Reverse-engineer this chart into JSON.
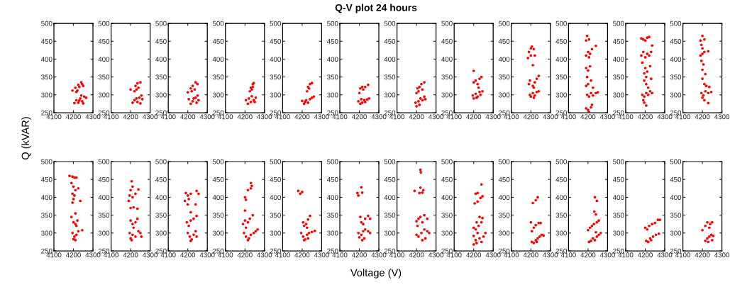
{
  "chart_data": [
    {
      "type": "scatter",
      "ylabel": "Q (kVAR)",
      "color": "#ff0000",
      "marker": "circle",
      "xlim": [
        4100,
        4300
      ],
      "xticks": [
        4100,
        4200,
        4300
      ],
      "ylim": [
        250,
        500
      ],
      "yticks": [
        250,
        300,
        350,
        400,
        450,
        500
      ],
      "x": [
        4195,
        4210,
        4220,
        4225,
        4240,
        4250,
        4245,
        4230,
        4215,
        4205,
        4215,
        4225,
        4235,
        4245,
        4255,
        4265,
        4250,
        4240,
        4230
      ],
      "values": [
        312,
        320,
        312,
        328,
        335,
        325,
        330,
        322,
        308,
        277,
        285,
        278,
        290,
        282,
        295,
        292,
        276,
        298,
        284
      ]
    },
    {
      "type": "scatter",
      "color": "#ff0000",
      "marker": "circle",
      "xlim": [
        4100,
        4300
      ],
      "xticks": [
        4100,
        4200,
        4300
      ],
      "ylim": [
        250,
        500
      ],
      "yticks": [
        250,
        300,
        350,
        400,
        450,
        500
      ],
      "x": [
        4200,
        4220,
        4225,
        4235,
        4250,
        4240,
        4230,
        4210,
        4220,
        4235,
        4245,
        4255,
        4260,
        4250,
        4230
      ],
      "values": [
        315,
        310,
        325,
        332,
        335,
        320,
        315,
        278,
        285,
        280,
        292,
        298,
        288,
        276,
        290
      ]
    },
    {
      "type": "scatter",
      "color": "#ff0000",
      "marker": "circle",
      "xlim": [
        4100,
        4300
      ],
      "xticks": [
        4100,
        4200,
        4300
      ],
      "ylim": [
        250,
        500
      ],
      "yticks": [
        250,
        300,
        350,
        400,
        450,
        500
      ],
      "x": [
        4200,
        4215,
        4225,
        4240,
        4250,
        4235,
        4220,
        4205,
        4215,
        4225,
        4240,
        4250,
        4255,
        4245,
        4230
      ],
      "values": [
        307,
        318,
        325,
        335,
        330,
        315,
        310,
        288,
        275,
        282,
        292,
        298,
        285,
        278,
        290
      ]
    },
    {
      "type": "scatter",
      "color": "#ff0000",
      "marker": "circle",
      "xlim": [
        4100,
        4300
      ],
      "xticks": [
        4100,
        4200,
        4300
      ],
      "ylim": [
        250,
        500
      ],
      "yticks": [
        250,
        300,
        350,
        400,
        450,
        500
      ],
      "x": [
        4225,
        4230,
        4240,
        4245,
        4235,
        4240,
        4205,
        4215,
        4220,
        4230,
        4245,
        4255,
        4250,
        4235
      ],
      "values": [
        310,
        320,
        330,
        333,
        315,
        322,
        285,
        275,
        290,
        280,
        285,
        292,
        280,
        296
      ]
    },
    {
      "type": "scatter",
      "color": "#ff0000",
      "marker": "circle",
      "xlim": [
        4100,
        4300
      ],
      "xticks": [
        4100,
        4200,
        4300
      ],
      "ylim": [
        250,
        500
      ],
      "yticks": [
        250,
        300,
        350,
        400,
        450,
        500
      ],
      "x": [
        4225,
        4230,
        4240,
        4250,
        4235,
        4200,
        4210,
        4220,
        4230,
        4240,
        4250,
        4260,
        4215
      ],
      "values": [
        310,
        322,
        330,
        333,
        318,
        283,
        275,
        285,
        278,
        288,
        292,
        295,
        280
      ]
    },
    {
      "type": "scatter",
      "title": "Q-V plot 24 hours",
      "color": "#ff0000",
      "marker": "circle",
      "xlim": [
        4100,
        4300
      ],
      "xticks": [
        4100,
        4200,
        4300
      ],
      "ylim": [
        250,
        500
      ],
      "yticks": [
        250,
        300,
        350,
        400,
        450,
        500
      ],
      "x": [
        4200,
        4205,
        4215,
        4230,
        4245,
        4220,
        4195,
        4205,
        4215,
        4225,
        4240,
        4250,
        4210,
        4230
      ],
      "values": [
        305,
        318,
        322,
        322,
        328,
        315,
        282,
        275,
        278,
        285,
        287,
        290,
        288,
        280
      ]
    },
    {
      "type": "scatter",
      "color": "#ff0000",
      "marker": "circle",
      "xlim": [
        4100,
        4300
      ],
      "xticks": [
        4100,
        4200,
        4300
      ],
      "ylim": [
        250,
        500
      ],
      "yticks": [
        250,
        300,
        350,
        400,
        450,
        500
      ],
      "x": [
        4200,
        4205,
        4215,
        4225,
        4240,
        4230,
        4210,
        4195,
        4200,
        4210,
        4220,
        4230,
        4245,
        4240,
        4215
      ],
      "values": [
        305,
        318,
        322,
        330,
        335,
        315,
        310,
        278,
        268,
        282,
        290,
        285,
        288,
        295,
        272
      ]
    },
    {
      "type": "scatter",
      "color": "#ff0000",
      "marker": "circle",
      "xlim": [
        4100,
        4300
      ],
      "xticks": [
        4100,
        4200,
        4300
      ],
      "ylim": [
        250,
        500
      ],
      "yticks": [
        250,
        300,
        350,
        400,
        450,
        500
      ],
      "x": [
        4200,
        4200,
        4210,
        4220,
        4230,
        4240,
        4225,
        4195,
        4200,
        4210,
        4220,
        4230,
        4245,
        4235,
        4215
      ],
      "values": [
        367,
        335,
        340,
        330,
        345,
        350,
        320,
        298,
        290,
        303,
        295,
        308,
        310,
        300,
        292
      ]
    },
    {
      "type": "scatter",
      "color": "#ff0000",
      "marker": "circle",
      "xlim": [
        4100,
        4300
      ],
      "xticks": [
        4100,
        4200,
        4300
      ],
      "ylim": [
        250,
        500
      ],
      "yticks": [
        250,
        300,
        350,
        400,
        450,
        500
      ],
      "x": [
        4185,
        4190,
        4200,
        4205,
        4215,
        4200,
        4220,
        4210,
        4190,
        4195,
        4210,
        4220,
        4230,
        4240,
        4215,
        4195,
        4200,
        4210,
        4220,
        4230,
        4240,
        4215
      ],
      "values": [
        403,
        420,
        430,
        435,
        428,
        410,
        410,
        383,
        330,
        340,
        325,
        335,
        345,
        353,
        320,
        300,
        295,
        305,
        298,
        308,
        310,
        292
      ]
    },
    {
      "type": "scatter",
      "color": "#ff0000",
      "marker": "circle",
      "xlim": [
        4100,
        4300
      ],
      "xticks": [
        4100,
        4200,
        4300
      ],
      "ylim": [
        250,
        500
      ],
      "yticks": [
        250,
        300,
        350,
        400,
        450,
        500
      ],
      "x": [
        4195,
        4190,
        4205,
        4240,
        4190,
        4200,
        4210,
        4220,
        4205,
        4190,
        4200,
        4210,
        4195,
        4190,
        4200,
        4215,
        4225,
        4195,
        4205,
        4215,
        4225,
        4240,
        4250,
        4190,
        4200,
        4215,
        4220,
        4205
      ],
      "values": [
        465,
        452,
        455,
        437,
        410,
        420,
        415,
        428,
        405,
        375,
        368,
        380,
        350,
        325,
        330,
        340,
        320,
        300,
        295,
        305,
        298,
        305,
        307,
        262,
        258,
        265,
        272,
        252
      ]
    },
    {
      "type": "scatter",
      "color": "#ff0000",
      "marker": "circle",
      "xlim": [
        4100,
        4300
      ],
      "xticks": [
        4100,
        4200,
        4300
      ],
      "ylim": [
        250,
        500
      ],
      "yticks": [
        250,
        300,
        350,
        400,
        450,
        500
      ],
      "x": [
        4180,
        4190,
        4200,
        4210,
        4220,
        4235,
        4180,
        4190,
        4200,
        4210,
        4220,
        4230,
        4185,
        4200,
        4195,
        4205,
        4210,
        4225,
        4195,
        4205,
        4215,
        4230,
        4185,
        4195,
        4205,
        4215,
        4225,
        4235,
        4190,
        4195,
        4205
      ],
      "values": [
        458,
        455,
        452,
        460,
        462,
        438,
        410,
        420,
        405,
        415,
        410,
        420,
        390,
        375,
        360,
        350,
        365,
        380,
        340,
        330,
        320,
        345,
        300,
        295,
        305,
        300,
        310,
        305,
        285,
        278,
        270
      ]
    },
    {
      "type": "scatter",
      "color": "#ff0000",
      "marker": "circle",
      "xlim": [
        4100,
        4300
      ],
      "xticks": [
        4100,
        4200,
        4300
      ],
      "ylim": [
        250,
        500
      ],
      "yticks": [
        250,
        300,
        350,
        400,
        450,
        500
      ],
      "x": [
        4190,
        4200,
        4210,
        4195,
        4200,
        4190,
        4200,
        4210,
        4230,
        4195,
        4205,
        4200,
        4215,
        4200,
        4210,
        4220,
        4235,
        4195,
        4205,
        4215,
        4230,
        4245,
        4200,
        4210,
        4230
      ],
      "values": [
        452,
        465,
        455,
        440,
        430,
        410,
        415,
        420,
        422,
        395,
        385,
        370,
        358,
        345,
        330,
        325,
        322,
        305,
        298,
        310,
        305,
        308,
        292,
        285,
        277
      ]
    },
    {
      "type": "scatter",
      "color": "#ff0000",
      "marker": "circle",
      "xlim": [
        4100,
        4300
      ],
      "xticks": [
        4100,
        4200,
        4300
      ],
      "ylim": [
        250,
        500
      ],
      "yticks": [
        250,
        300,
        350,
        400,
        450,
        500
      ],
      "x": [
        4180,
        4195,
        4205,
        4215,
        4190,
        4200,
        4195,
        4205,
        4210,
        4225,
        4200,
        4195,
        4235,
        4210,
        4190,
        4200,
        4210,
        4220,
        4215,
        4195,
        4205,
        4215,
        4225,
        4245,
        4200,
        4210
      ],
      "values": [
        460,
        458,
        455,
        455,
        440,
        430,
        410,
        405,
        420,
        425,
        395,
        385,
        390,
        355,
        345,
        330,
        325,
        335,
        320,
        300,
        290,
        295,
        305,
        308,
        283,
        280
      ]
    },
    {
      "type": "scatter",
      "color": "#ff0000",
      "marker": "circle",
      "xlim": [
        4100,
        4300
      ],
      "xticks": [
        4100,
        4200,
        4300
      ],
      "ylim": [
        250,
        500
      ],
      "yticks": [
        250,
        300,
        350,
        400,
        450,
        500
      ],
      "x": [
        4205,
        4210,
        4200,
        4195,
        4210,
        4225,
        4240,
        4190,
        4200,
        4215,
        4235,
        4200,
        4210,
        4225,
        4235,
        4215,
        4195,
        4200,
        4210,
        4225,
        4240,
        4250,
        4255,
        4205
      ],
      "values": [
        445,
        430,
        420,
        405,
        400,
        410,
        422,
        390,
        370,
        372,
        368,
        335,
        325,
        330,
        340,
        315,
        300,
        285,
        295,
        290,
        305,
        300,
        290,
        280
      ]
    },
    {
      "type": "scatter",
      "color": "#ff0000",
      "marker": "circle",
      "xlim": [
        4100,
        4300
      ],
      "xticks": [
        4100,
        4200,
        4300
      ],
      "ylim": [
        250,
        500
      ],
      "yticks": [
        250,
        300,
        350,
        400,
        450,
        500
      ],
      "x": [
        4190,
        4200,
        4205,
        4215,
        4245,
        4255,
        4185,
        4200,
        4240,
        4215,
        4195,
        4205,
        4215,
        4230,
        4245,
        4200,
        4210,
        4220,
        4230,
        4240,
        4245,
        4215
      ],
      "values": [
        412,
        405,
        395,
        410,
        418,
        410,
        390,
        380,
        380,
        358,
        330,
        320,
        335,
        340,
        348,
        300,
        290,
        282,
        295,
        305,
        290,
        278
      ]
    },
    {
      "type": "scatter",
      "color": "#ff0000",
      "marker": "circle",
      "xlim": [
        4100,
        4300
      ],
      "xticks": [
        4100,
        4200,
        4300
      ],
      "ylim": [
        250,
        500
      ],
      "yticks": [
        250,
        300,
        350,
        400,
        450,
        500
      ],
      "x": [
        4230,
        4235,
        4230,
        4215,
        4200,
        4205,
        4200,
        4190,
        4200,
        4215,
        4225,
        4240,
        4205,
        4195,
        4205,
        4215,
        4230,
        4245,
        4255,
        4265,
        4220
      ],
      "values": [
        440,
        432,
        425,
        420,
        400,
        393,
        363,
        325,
        335,
        330,
        340,
        350,
        315,
        300,
        290,
        280,
        295,
        300,
        305,
        310,
        285
      ]
    },
    {
      "type": "scatter",
      "color": "#ff0000",
      "marker": "circle",
      "xlim": [
        4100,
        4300
      ],
      "xticks": [
        4100,
        4200,
        4300
      ],
      "ylim": [
        250,
        500
      ],
      "yticks": [
        250,
        300,
        350,
        400,
        450,
        500
      ],
      "x": [
        4180,
        4190,
        4200,
        4205,
        4210,
        4220,
        4230,
        4240,
        4225,
        4195,
        4205,
        4215,
        4225,
        4235,
        4250,
        4265,
        4210,
        4230
      ],
      "values": [
        418,
        410,
        415,
        330,
        320,
        325,
        338,
        348,
        315,
        300,
        290,
        282,
        295,
        300,
        303,
        306,
        280,
        285
      ]
    },
    {
      "type": "scatter",
      "xlabel": "Voltage (V)",
      "color": "#ff0000",
      "marker": "circle",
      "xlim": [
        4100,
        4300
      ],
      "xticks": [
        4100,
        4200,
        4300
      ],
      "ylim": [
        250,
        500
      ],
      "yticks": [
        250,
        300,
        350,
        400,
        450,
        500
      ],
      "x": [
        4210,
        4190,
        4195,
        4215,
        4205,
        4210,
        4220,
        4230,
        4245,
        4255,
        4195,
        4200,
        4210,
        4220,
        4230,
        4245,
        4255,
        4215,
        4225
      ],
      "values": [
        428,
        412,
        405,
        413,
        345,
        330,
        325,
        340,
        348,
        340,
        300,
        288,
        295,
        305,
        310,
        305,
        300,
        280,
        285
      ]
    },
    {
      "type": "scatter",
      "color": "#ff0000",
      "marker": "circle",
      "xlim": [
        4100,
        4300
      ],
      "xticks": [
        4100,
        4200,
        4300
      ],
      "ylim": [
        250,
        500
      ],
      "yticks": [
        250,
        300,
        350,
        400,
        450,
        500
      ],
      "x": [
        4220,
        4222,
        4220,
        4190,
        4215,
        4230,
        4235,
        4200,
        4210,
        4220,
        4240,
        4255,
        4230,
        4205,
        4200,
        4210,
        4225,
        4240,
        4255,
        4265,
        4230,
        4245
      ],
      "values": [
        477,
        470,
        427,
        418,
        412,
        413,
        420,
        333,
        340,
        345,
        350,
        340,
        330,
        320,
        295,
        290,
        300,
        310,
        305,
        300,
        280,
        285
      ]
    },
    {
      "type": "scatter",
      "color": "#ff0000",
      "marker": "circle",
      "xlim": [
        4100,
        4300
      ],
      "xticks": [
        4100,
        4200,
        4300
      ],
      "ylim": [
        250,
        500
      ],
      "yticks": [
        250,
        300,
        350,
        400,
        450,
        500
      ],
      "x": [
        4240,
        4210,
        4220,
        4205,
        4220,
        4235,
        4245,
        4230,
        4245,
        4215,
        4200,
        4210,
        4225,
        4240,
        4200,
        4200,
        4210,
        4220,
        4230,
        4240,
        4250,
        4260,
        4215
      ],
      "values": [
        436,
        410,
        412,
        383,
        388,
        398,
        403,
        345,
        342,
        330,
        315,
        310,
        320,
        330,
        292,
        268,
        280,
        300,
        285,
        275,
        290,
        300,
        272
      ]
    },
    {
      "type": "scatter",
      "color": "#ff0000",
      "marker": "circle",
      "xlim": [
        4100,
        4300
      ],
      "xticks": [
        4100,
        4200,
        4300
      ],
      "ylim": [
        250,
        500
      ],
      "yticks": [
        250,
        300,
        350,
        400,
        450,
        500
      ],
      "x": [
        4235,
        4225,
        4210,
        4200,
        4205,
        4215,
        4225,
        4240,
        4250,
        4205,
        4215,
        4225,
        4235,
        4245,
        4255,
        4265,
        4230
      ],
      "values": [
        400,
        392,
        384,
        330,
        305,
        315,
        322,
        328,
        328,
        275,
        272,
        280,
        285,
        290,
        295,
        293,
        275
      ]
    },
    {
      "type": "scatter",
      "color": "#ff0000",
      "marker": "circle",
      "xlim": [
        4100,
        4300
      ],
      "xticks": [
        4100,
        4200,
        4300
      ],
      "ylim": [
        250,
        500
      ],
      "yticks": [
        250,
        300,
        350,
        400,
        450,
        500
      ],
      "x": [
        4235,
        4245,
        4232,
        4240,
        4200,
        4210,
        4220,
        4230,
        4245,
        4255,
        4240,
        4205,
        4215,
        4225,
        4235,
        4245,
        4255,
        4265
      ],
      "values": [
        400,
        390,
        360,
        352,
        308,
        315,
        320,
        325,
        330,
        335,
        302,
        275,
        278,
        285,
        280,
        290,
        295,
        300
      ]
    },
    {
      "type": "scatter",
      "color": "#ff0000",
      "marker": "circle",
      "xlim": [
        4100,
        4300
      ],
      "xticks": [
        4100,
        4200,
        4300
      ],
      "ylim": [
        250,
        500
      ],
      "yticks": [
        250,
        300,
        350,
        400,
        450,
        500
      ],
      "x": [
        4200,
        4210,
        4220,
        4235,
        4250,
        4265,
        4275,
        4205,
        4215,
        4225,
        4240,
        4255,
        4270,
        4230
      ],
      "values": [
        315,
        310,
        320,
        325,
        328,
        337,
        337,
        278,
        275,
        285,
        290,
        295,
        298,
        280
      ]
    },
    {
      "type": "scatter",
      "color": "#ff0000",
      "marker": "circle",
      "xlim": [
        4100,
        4300
      ],
      "xticks": [
        4100,
        4200,
        4300
      ],
      "ylim": [
        250,
        500
      ],
      "yticks": [
        250,
        300,
        350,
        400,
        450,
        500
      ],
      "x": [
        4200,
        4215,
        4225,
        4240,
        4250,
        4235,
        4215,
        4225,
        4235,
        4245,
        4255,
        4230,
        4250
      ],
      "values": [
        308,
        320,
        330,
        325,
        330,
        315,
        278,
        285,
        290,
        295,
        292,
        275,
        280
      ]
    }
  ]
}
